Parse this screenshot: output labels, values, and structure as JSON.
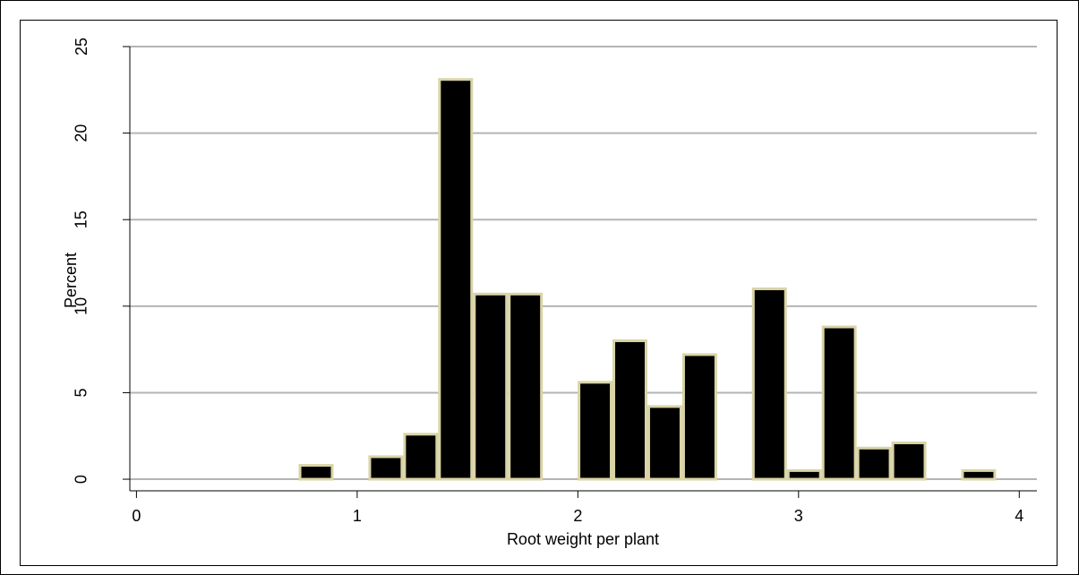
{
  "chart_data": {
    "type": "histogram",
    "x_label": "Root weight per plant",
    "y_label": "Percent",
    "bins": [
      0.735,
      0.893,
      1.051,
      1.209,
      1.367,
      1.525,
      1.683,
      1.841,
      1.999,
      2.157,
      2.315,
      2.473,
      2.631,
      2.789,
      2.947,
      3.105,
      3.263,
      3.421,
      3.579,
      3.737,
      3.895
    ],
    "values": [
      0.8,
      0,
      1.3,
      2.6,
      23.1,
      10.7,
      10.7,
      0,
      5.6,
      8.0,
      4.2,
      7.2,
      0,
      11.0,
      0.5,
      8.8,
      1.8,
      2.1,
      0,
      0.5
    ],
    "color": "#000000",
    "edge_color": "#d9d4a6",
    "grid": true,
    "xlim": [
      -0.03,
      4.08
    ],
    "xticks": [
      0,
      1,
      2,
      3,
      4
    ],
    "ylim": [
      -0.67,
      25
    ],
    "yticks": [
      0,
      5,
      10,
      15,
      20,
      25
    ]
  }
}
